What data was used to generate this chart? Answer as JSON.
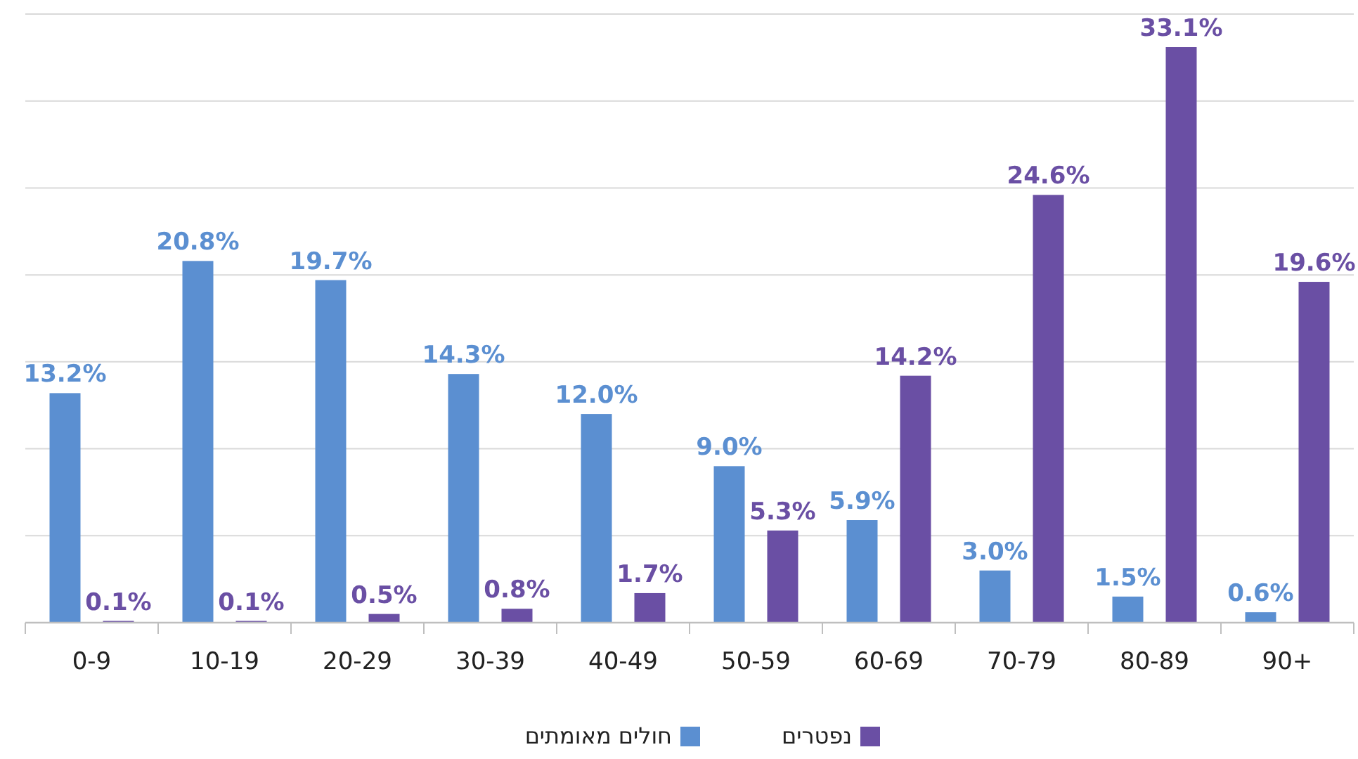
{
  "chart_data": {
    "type": "bar",
    "categories": [
      "0-9",
      "10-19",
      "20-29",
      "30-39",
      "40-49",
      "50-59",
      "60-69",
      "70-79",
      "80-89",
      "90+"
    ],
    "series": [
      {
        "name": "חולים מאומתים",
        "color": "#5b8fd1",
        "values": [
          13.2,
          20.8,
          19.7,
          14.3,
          12.0,
          9.0,
          5.9,
          3.0,
          1.5,
          0.6
        ],
        "value_labels": [
          "13.2%",
          "20.8%",
          "19.7%",
          "14.3%",
          "12.0%",
          "9.0%",
          "5.9%",
          "3.0%",
          "1.5%",
          "0.6%"
        ]
      },
      {
        "name": "נפטרים",
        "color": "#6a4fa4",
        "values": [
          0.1,
          0.1,
          0.5,
          0.8,
          1.7,
          5.3,
          14.2,
          24.6,
          33.1,
          19.6
        ],
        "value_labels": [
          "0.1%",
          "0.1%",
          "0.5%",
          "0.8%",
          "1.7%",
          "5.3%",
          "14.2%",
          "24.6%",
          "33.1%",
          "19.6%"
        ]
      }
    ],
    "ylim": [
      0,
      35
    ],
    "yticks": [
      {
        "value": 0,
        "label": null
      },
      {
        "value": 5,
        "label": null
      },
      {
        "value": 10,
        "label": null
      },
      {
        "value": 15,
        "label": null
      },
      {
        "value": 20,
        "label": null
      },
      {
        "value": 25,
        "label": null
      },
      {
        "value": 30,
        "label": null
      },
      {
        "value": 35,
        "label": null
      }
    ],
    "grid": "y",
    "tick_labels": "x",
    "legend": "bottom"
  }
}
